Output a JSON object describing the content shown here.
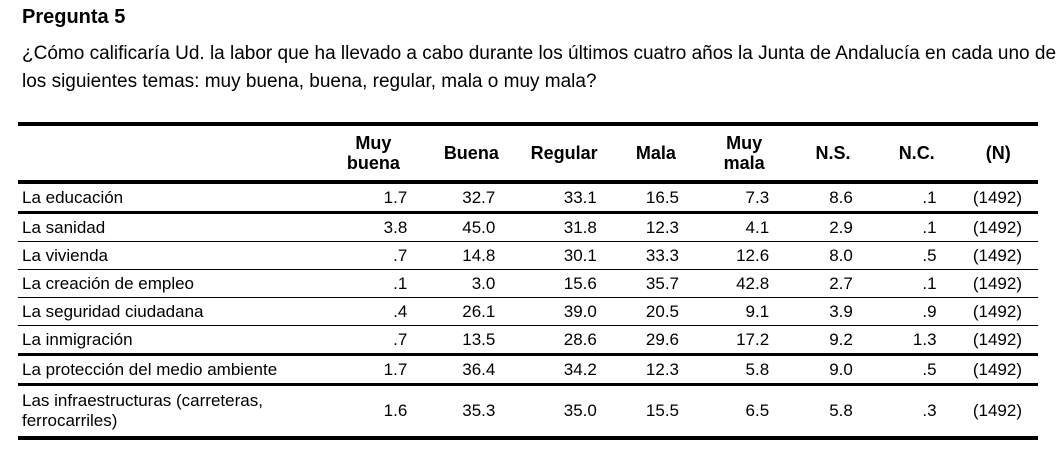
{
  "title": "Pregunta 5",
  "question": "¿Cómo calificaría Ud. la labor que ha llevado a cabo durante los últimos cuatro años la Junta de Andalucía en cada uno de los siguientes temas: muy buena, buena, regular, mala o muy mala?",
  "table": {
    "columns": [
      "",
      "Muy buena",
      "Buena",
      "Regular",
      "Mala",
      "Muy mala",
      "N.S.",
      "N.C.",
      "(N)"
    ],
    "rows": [
      [
        "La educación",
        "1.7",
        "32.7",
        "33.1",
        "16.5",
        "7.3",
        "8.6",
        ".1",
        "(1492)"
      ],
      [
        "La sanidad",
        "3.8",
        "45.0",
        "31.8",
        "12.3",
        "4.1",
        "2.9",
        ".1",
        "(1492)"
      ],
      [
        "La vivienda",
        ".7",
        "14.8",
        "30.1",
        "33.3",
        "12.6",
        "8.0",
        ".5",
        "(1492)"
      ],
      [
        "La creación de empleo",
        ".1",
        "3.0",
        "15.6",
        "35.7",
        "42.8",
        "2.7",
        ".1",
        "(1492)"
      ],
      [
        "La seguridad ciudadana",
        ".4",
        "26.1",
        "39.0",
        "20.5",
        "9.1",
        "3.9",
        ".9",
        "(1492)"
      ],
      [
        "La inmigración",
        ".7",
        "13.5",
        "28.6",
        "29.6",
        "17.2",
        "9.2",
        "1.3",
        "(1492)"
      ],
      [
        "La protección del medio ambiente",
        "1.7",
        "36.4",
        "34.2",
        "12.3",
        "5.8",
        "9.0",
        ".5",
        "(1492)"
      ],
      [
        "Las infraestructuras (carreteras, ferrocarriles)",
        "1.6",
        "35.3",
        "35.0",
        "15.5",
        "6.5",
        "5.8",
        ".3",
        "(1492)"
      ]
    ]
  }
}
